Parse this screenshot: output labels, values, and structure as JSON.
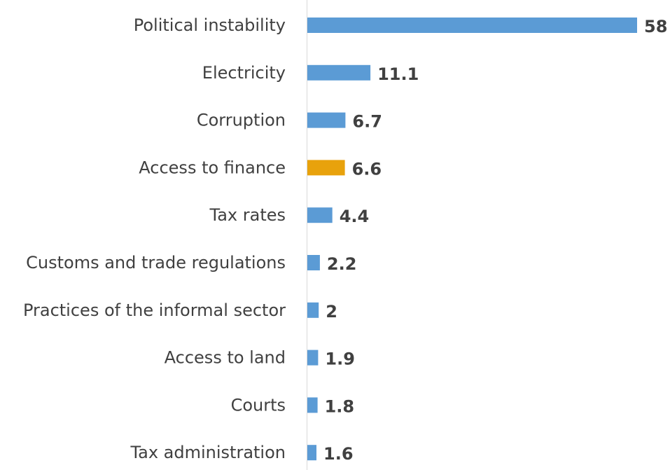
{
  "chart_data": {
    "type": "bar",
    "orientation": "horizontal",
    "categories": [
      "Political instability",
      "Electricity",
      "Corruption",
      "Access to finance",
      "Tax rates",
      "Customs and trade regulations",
      "Practices of the informal sector",
      "Access to land",
      "Courts",
      "Tax administration"
    ],
    "values": [
      58,
      11.1,
      6.7,
      6.6,
      4.4,
      2.2,
      2,
      1.9,
      1.8,
      1.6
    ],
    "value_labels": [
      "58",
      "11.1",
      "6.7",
      "6.6",
      "4.4",
      "2.2",
      "2",
      "1.9",
      "1.8",
      "1.6"
    ],
    "colors": [
      "#5b9bd5",
      "#5b9bd5",
      "#5b9bd5",
      "#e8a20c",
      "#5b9bd5",
      "#5b9bd5",
      "#5b9bd5",
      "#5b9bd5",
      "#5b9bd5",
      "#5b9bd5"
    ],
    "xlim": [
      0,
      58
    ],
    "grid": false,
    "legend": "none"
  }
}
